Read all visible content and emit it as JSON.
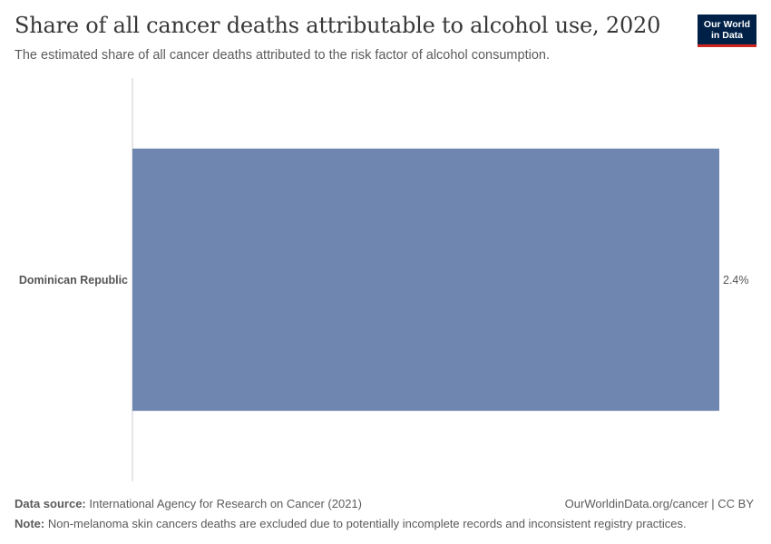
{
  "header": {
    "title": "Share of all cancer deaths attributable to alcohol use, 2020",
    "subtitle": "The estimated share of all cancer deaths attributed to the risk factor of alcohol consumption."
  },
  "logo": {
    "line1": "Our World",
    "line2": "in Data"
  },
  "footer": {
    "source_label": "Data source:",
    "source_text": "International Agency for Research on Cancer (2021)",
    "site_text": "OurWorldinData.org/cancer | CC BY",
    "note_label": "Note:",
    "note_text": "Non-melanoma skin cancers deaths are excluded due to potentially incomplete records and inconsistent registry practices."
  },
  "colors": {
    "bar": "#6f87b0",
    "axis": "#cccccc"
  },
  "chart_data": {
    "type": "bar",
    "orientation": "horizontal",
    "title": "Share of all cancer deaths attributable to alcohol use, 2020",
    "categories": [
      "Dominican Republic"
    ],
    "values": [
      2.4
    ],
    "value_labels": [
      "2.4%"
    ],
    "unit": "%",
    "xlim": [
      0,
      2.4
    ],
    "xlabel": "",
    "ylabel": "",
    "grid": false,
    "legend": "none"
  }
}
